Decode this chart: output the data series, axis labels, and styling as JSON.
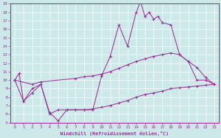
{
  "xlabel": "Windchill (Refroidissement éolien,°C)",
  "xlim": [
    -0.5,
    23.5
  ],
  "ylim": [
    5,
    19
  ],
  "xticks": [
    0,
    1,
    2,
    3,
    4,
    5,
    6,
    7,
    8,
    9,
    10,
    11,
    12,
    13,
    14,
    15,
    16,
    17,
    18,
    19,
    20,
    21,
    22,
    23
  ],
  "yticks": [
    5,
    6,
    7,
    8,
    9,
    10,
    11,
    12,
    13,
    14,
    15,
    16,
    17,
    18,
    19
  ],
  "bg_color": "#cce8e8",
  "grid_color": "#ffffff",
  "line_color": "#993399",
  "curve1_x": [
    0,
    0.5,
    1,
    2,
    3,
    4,
    5,
    6,
    7,
    8,
    9,
    10,
    11,
    12,
    13,
    14,
    14.5,
    15,
    15.5,
    16,
    16.5,
    17,
    18,
    19,
    20,
    21,
    22,
    23
  ],
  "curve1_y": [
    10.0,
    10.8,
    7.5,
    9.0,
    9.5,
    6.2,
    5.2,
    6.5,
    6.5,
    6.5,
    6.5,
    10.5,
    12.8,
    16.5,
    14.0,
    18.0,
    19.3,
    17.5,
    18.0,
    17.2,
    17.5,
    16.8,
    16.5,
    13.0,
    12.2,
    10.0,
    10.0,
    9.5
  ],
  "curve2_x": [
    0,
    2,
    3,
    7,
    8,
    9,
    10,
    11,
    12,
    13,
    14,
    15,
    16,
    17,
    18,
    19,
    20,
    21,
    22,
    23
  ],
  "curve2_y": [
    10.0,
    9.5,
    9.8,
    10.2,
    10.4,
    10.5,
    10.7,
    11.0,
    11.4,
    11.8,
    12.2,
    12.5,
    12.8,
    13.0,
    13.2,
    13.0,
    12.2,
    11.5,
    10.3,
    9.5
  ],
  "curve3_x": [
    0,
    1,
    2,
    3,
    4,
    5,
    6,
    7,
    8,
    9,
    10,
    11,
    12,
    13,
    14,
    15,
    16,
    17,
    18,
    19,
    20,
    21,
    22,
    23
  ],
  "curve3_y": [
    10.0,
    7.5,
    8.5,
    9.5,
    6.0,
    6.5,
    6.5,
    6.5,
    6.5,
    6.6,
    6.8,
    7.0,
    7.3,
    7.6,
    8.0,
    8.3,
    8.5,
    8.7,
    9.0,
    9.1,
    9.2,
    9.3,
    9.4,
    9.5
  ]
}
